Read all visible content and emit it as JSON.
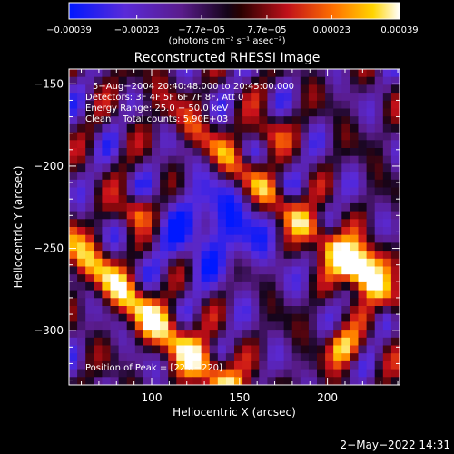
{
  "chart_data": {
    "type": "heatmap",
    "title": "Reconstructed RHESSI Image",
    "xlabel": "Heliocentric X (arcsec)",
    "ylabel": "Heliocentric Y (arcsec)",
    "xlim": [
      53,
      241
    ],
    "ylim": [
      -333,
      -141
    ],
    "x_ticks": [
      100,
      150,
      200
    ],
    "x_tick_labels": [
      "100",
      "150",
      "200"
    ],
    "y_ticks": [
      -150,
      -200,
      -250,
      -300
    ],
    "y_tick_labels": [
      "−150",
      "−200",
      "−250",
      "−300"
    ],
    "colorbar": {
      "min": -0.00039,
      "max": 0.00039,
      "ticks": [
        -0.00039,
        -0.00023,
        -7.7e-05,
        7.7e-05,
        0.00023,
        0.00039
      ],
      "tick_labels": [
        "−0.00039",
        "−0.00023",
        "−7.7e−05",
        "7.7e−05",
        "0.00023",
        "0.00039"
      ],
      "unit_label": "(photons cm⁻² s⁻¹ asec⁻²)",
      "colormap": [
        "#0018ff",
        "#6a2cc0",
        "#2a0a32",
        "#000000",
        "#c0101a",
        "#ff6a00",
        "#ffd000",
        "#ffffff"
      ]
    },
    "grid": false,
    "annotations": [
      "5−Aug−2004 20:40:48.000 to 20:45:00.000",
      "Detectors: 3F 4F 5F 6F 7F 8F, Att 0",
      "Energy Range: 25.0 − 50.0 keV",
      "Clean    Total counts: 5.90E+03"
    ],
    "peak_label": "Position of Peak = [224,−220]",
    "peak": [
      224,
      -220
    ],
    "grid_shape": [
      40,
      40
    ],
    "z_values_note": "field cells encoded in script"
  },
  "footer_timestamp": "2−May−2022 14:31"
}
